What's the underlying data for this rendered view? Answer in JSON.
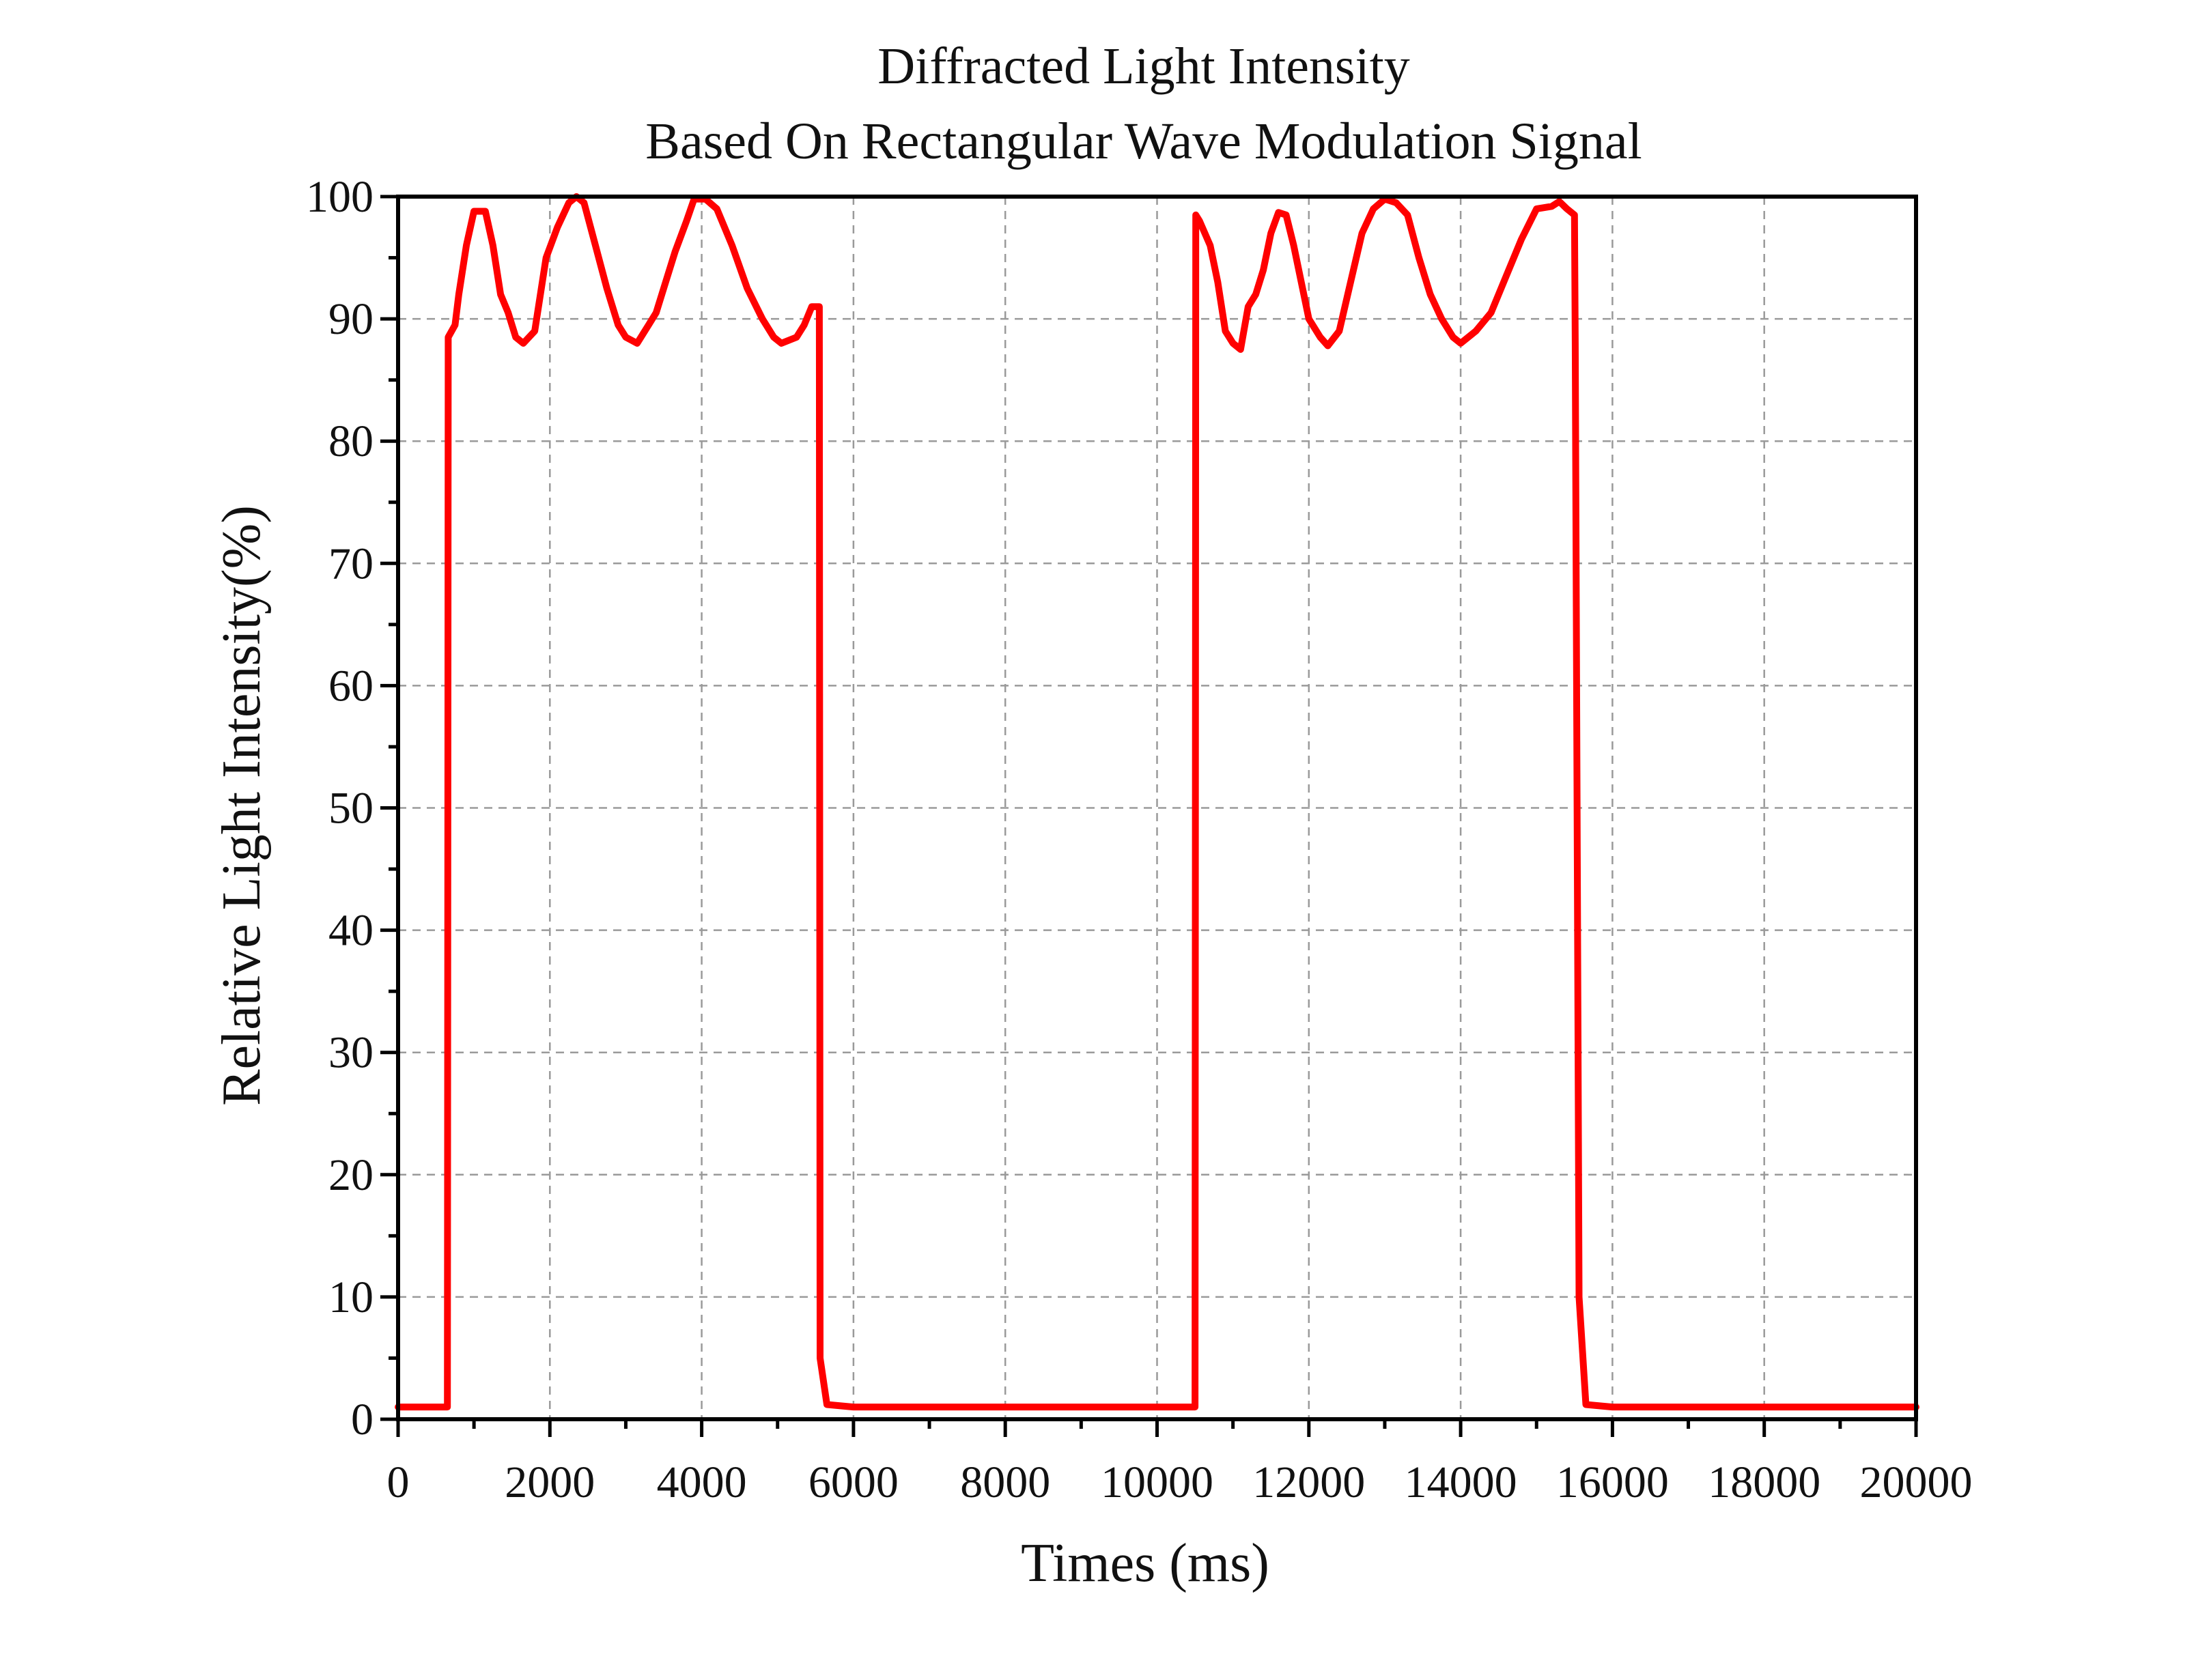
{
  "chart_data": {
    "type": "line",
    "title": [
      "Diffracted Light Intensity",
      "Based On Rectangular Wave Modulation Signal"
    ],
    "xlabel": "Times (ms)",
    "ylabel": "Relative Light Intensity(%)",
    "xlim": [
      0,
      20000
    ],
    "ylim": [
      0,
      100
    ],
    "xticks": [
      0,
      2000,
      4000,
      6000,
      8000,
      10000,
      12000,
      14000,
      16000,
      18000,
      20000
    ],
    "xtick_labels": [
      "0",
      "2000",
      "4000",
      "6000",
      "8000",
      "10000",
      "12000",
      "14000",
      "16000",
      "18000",
      "20000"
    ],
    "yticks": [
      0,
      10,
      20,
      30,
      40,
      50,
      60,
      70,
      80,
      90,
      100
    ],
    "ytick_labels": [
      "0",
      "10",
      "20",
      "30",
      "40",
      "50",
      "60",
      "70",
      "80",
      "90",
      "100"
    ],
    "grid": true,
    "legend": "none",
    "series": [
      {
        "color": "#ff0000",
        "points": [
          [
            0,
            1
          ],
          [
            650,
            1
          ],
          [
            660,
            88.5
          ],
          [
            750,
            89.5
          ],
          [
            800,
            92
          ],
          [
            900,
            96
          ],
          [
            1000,
            98.8
          ],
          [
            1150,
            98.8
          ],
          [
            1250,
            96
          ],
          [
            1350,
            92
          ],
          [
            1450,
            90.5
          ],
          [
            1550,
            88.5
          ],
          [
            1650,
            88
          ],
          [
            1800,
            89
          ],
          [
            1950,
            95
          ],
          [
            2100,
            97.5
          ],
          [
            2250,
            99.5
          ],
          [
            2350,
            100
          ],
          [
            2450,
            99.5
          ],
          [
            2600,
            96
          ],
          [
            2750,
            92.5
          ],
          [
            2900,
            89.5
          ],
          [
            3000,
            88.5
          ],
          [
            3150,
            88
          ],
          [
            3300,
            89.5
          ],
          [
            3400,
            90.5
          ],
          [
            3500,
            92.5
          ],
          [
            3650,
            95.5
          ],
          [
            3800,
            98
          ],
          [
            3900,
            99.8
          ],
          [
            4050,
            99.8
          ],
          [
            4200,
            99
          ],
          [
            4400,
            96
          ],
          [
            4600,
            92.5
          ],
          [
            4800,
            90
          ],
          [
            4950,
            88.5
          ],
          [
            5050,
            88
          ],
          [
            5250,
            88.5
          ],
          [
            5350,
            89.5
          ],
          [
            5450,
            91
          ],
          [
            5550,
            91
          ],
          [
            5560,
            5
          ],
          [
            5650,
            1.2
          ],
          [
            6000,
            1
          ],
          [
            10500,
            1
          ],
          [
            10510,
            98.5
          ],
          [
            10560,
            98
          ],
          [
            10700,
            96
          ],
          [
            10800,
            93
          ],
          [
            10900,
            89
          ],
          [
            11000,
            88
          ],
          [
            11100,
            87.5
          ],
          [
            11200,
            91
          ],
          [
            11300,
            92
          ],
          [
            11400,
            94
          ],
          [
            11500,
            97
          ],
          [
            11600,
            98.7
          ],
          [
            11700,
            98.5
          ],
          [
            11800,
            96
          ],
          [
            11900,
            93
          ],
          [
            12000,
            90
          ],
          [
            12150,
            88.5
          ],
          [
            12250,
            87.8
          ],
          [
            12400,
            89
          ],
          [
            12550,
            93
          ],
          [
            12700,
            97
          ],
          [
            12850,
            99
          ],
          [
            13000,
            99.8
          ],
          [
            13150,
            99.5
          ],
          [
            13300,
            98.5
          ],
          [
            13450,
            95
          ],
          [
            13600,
            92
          ],
          [
            13750,
            90
          ],
          [
            13900,
            88.5
          ],
          [
            14000,
            88
          ],
          [
            14200,
            89
          ],
          [
            14400,
            90.5
          ],
          [
            14600,
            93.5
          ],
          [
            14800,
            96.5
          ],
          [
            15000,
            99
          ],
          [
            15200,
            99.2
          ],
          [
            15300,
            99.6
          ],
          [
            15400,
            99
          ],
          [
            15500,
            98.5
          ],
          [
            15510,
            88
          ],
          [
            15560,
            10
          ],
          [
            15650,
            1.2
          ],
          [
            16000,
            1
          ],
          [
            20000,
            1
          ]
        ]
      }
    ]
  }
}
